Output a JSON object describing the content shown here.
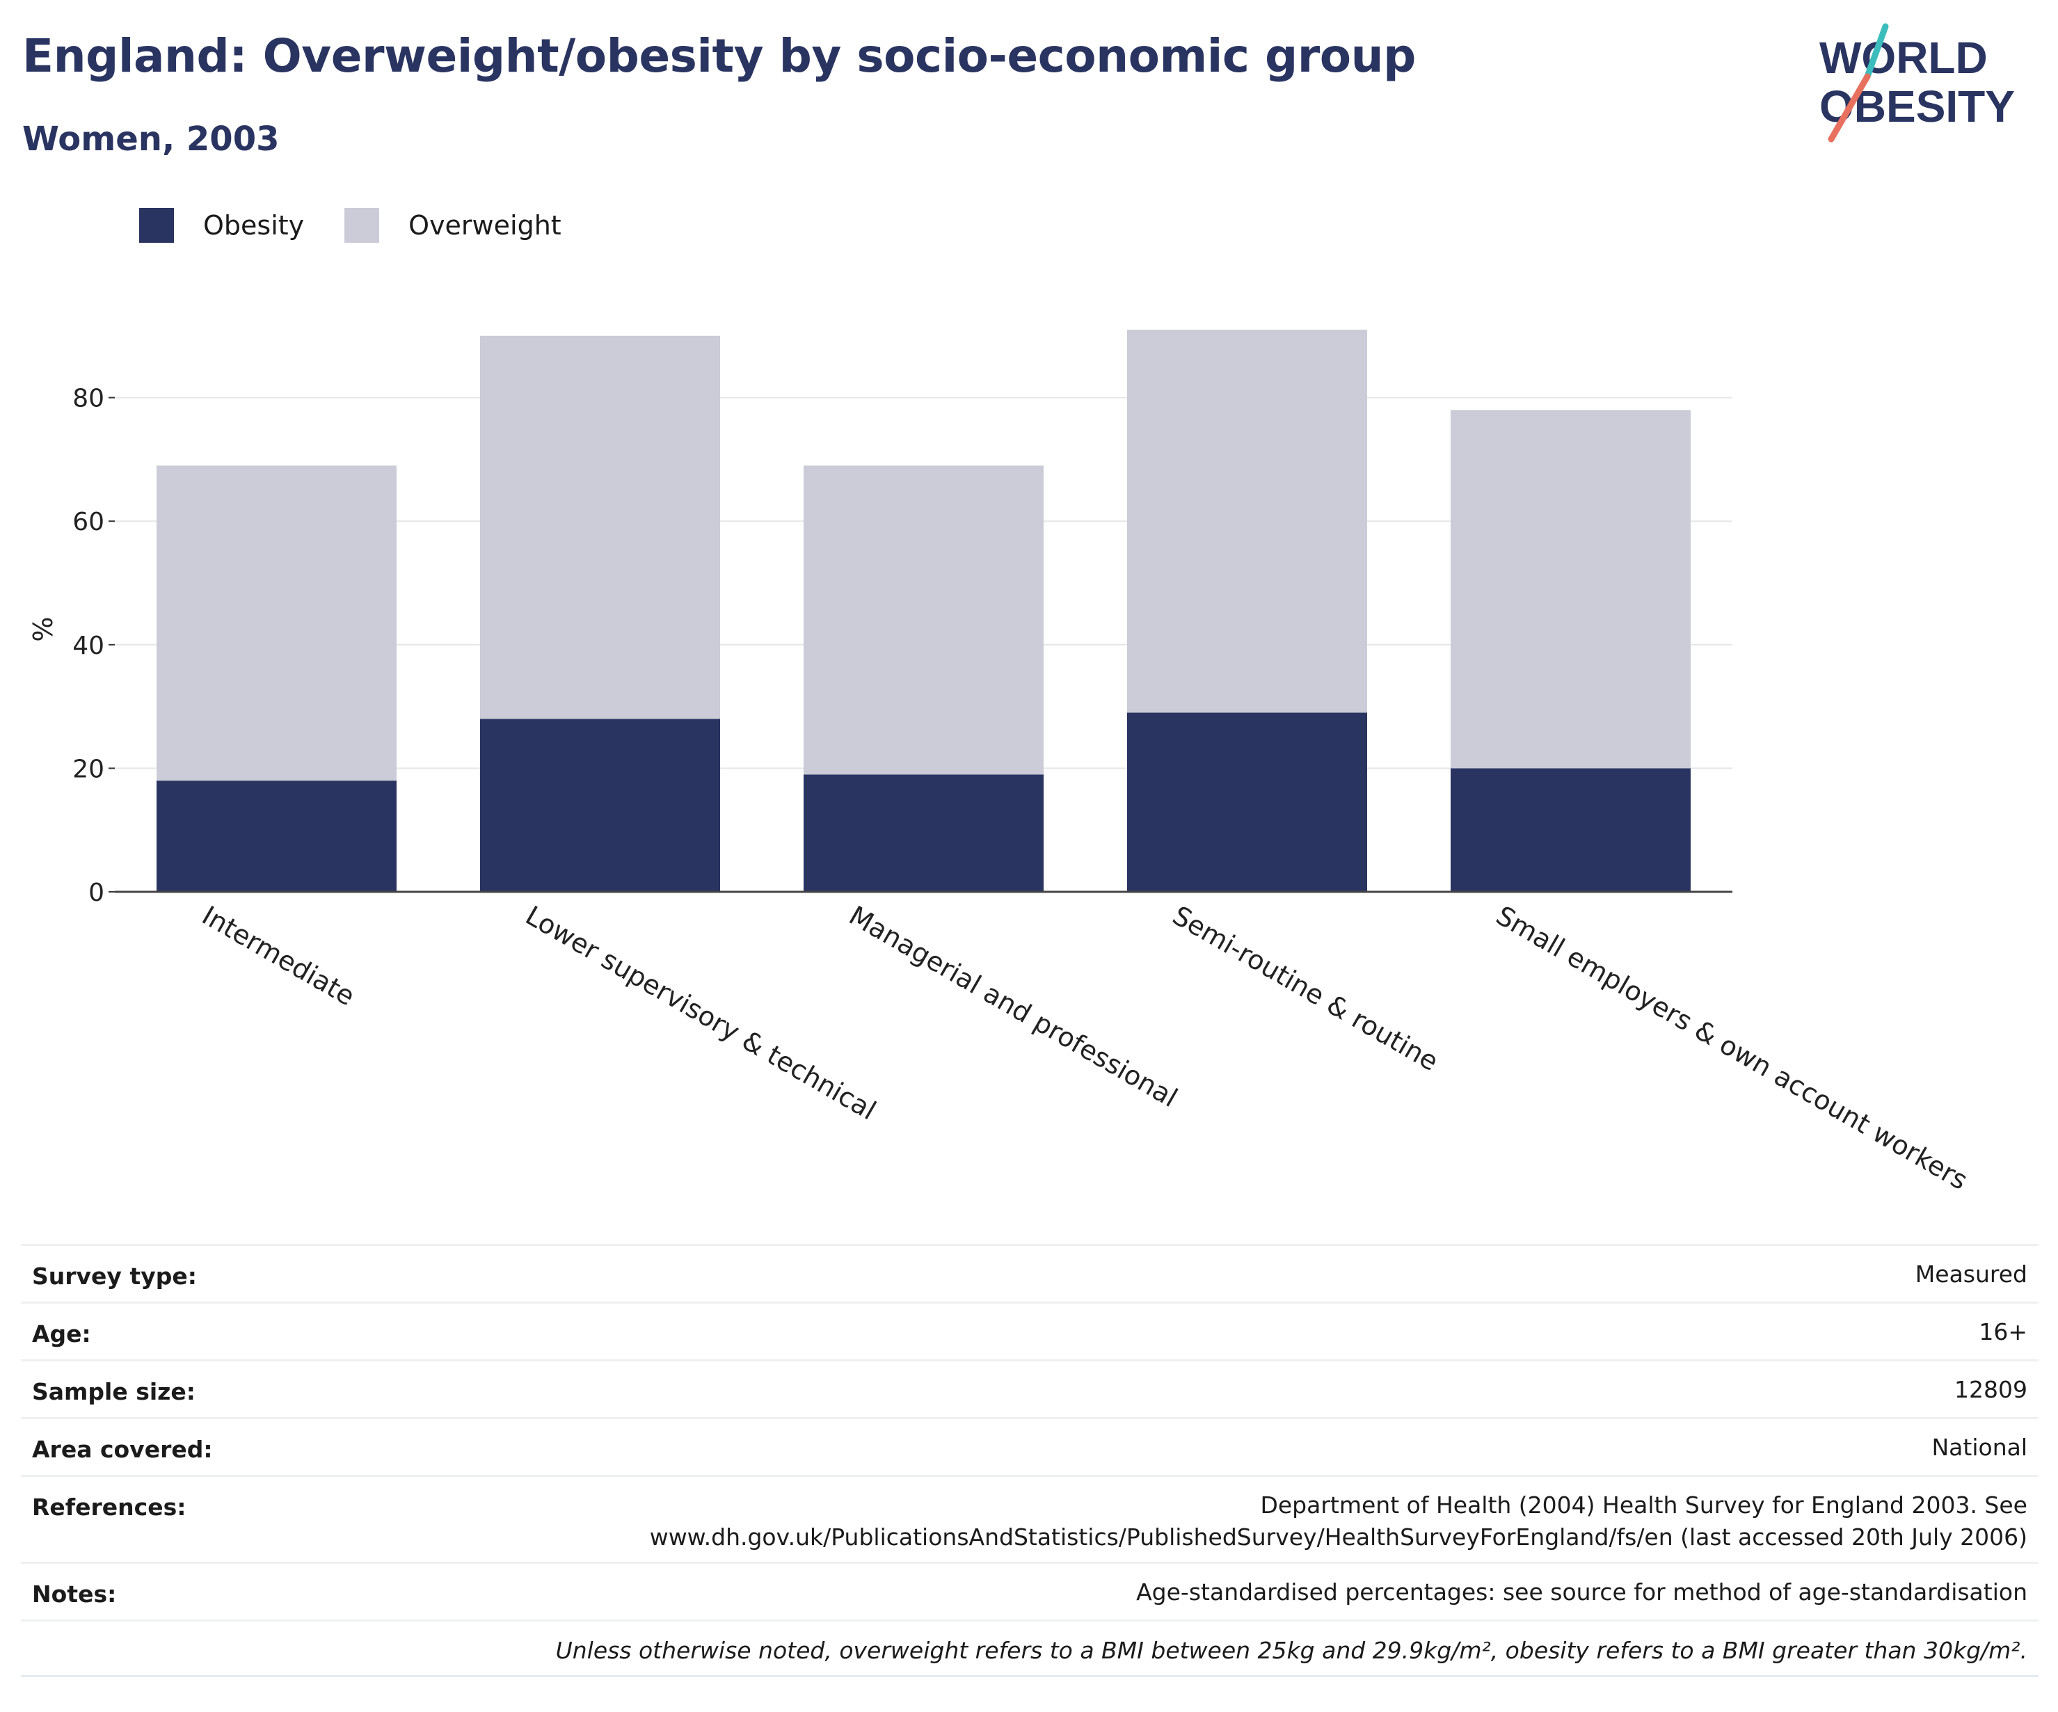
{
  "header": {
    "title": "England: Overweight/obesity by socio-economic group",
    "subtitle": "Women, 2003"
  },
  "logo": {
    "line1": "WORLD",
    "line2": "OBESITY"
  },
  "colors": {
    "obesity": "#2a3461",
    "overweight": "#cbccd8",
    "text": "#2a3461",
    "logo_teal": "#3cbdbd",
    "logo_coral": "#e8705e"
  },
  "chart_data": {
    "type": "bar",
    "stacked": true,
    "categories": [
      "Intermediate",
      "Lower supervisory & technical",
      "Managerial and professional",
      "Semi-routine & routine",
      "Small employers & own account workers"
    ],
    "series": [
      {
        "name": "Obesity",
        "values": [
          18,
          28,
          19,
          29,
          20
        ]
      },
      {
        "name": "Overweight",
        "values": [
          51,
          62,
          50,
          62,
          58
        ]
      }
    ],
    "ylabel": "%",
    "xlabel": "",
    "ylim": [
      0,
      95
    ],
    "yticks": [
      0,
      20,
      40,
      60,
      80
    ],
    "grid": true,
    "legend": "top-left"
  },
  "info": {
    "rows": [
      {
        "key": "Survey type:",
        "value": [
          "Measured"
        ]
      },
      {
        "key": "Age:",
        "value": [
          "16+"
        ]
      },
      {
        "key": "Sample size:",
        "value": [
          "12809"
        ]
      },
      {
        "key": "Area covered:",
        "value": [
          "National"
        ]
      },
      {
        "key": "References:",
        "value": [
          "Department of Health (2004) Health Survey for England 2003. See",
          "www.dh.gov.uk/PublicationsAndStatistics/PublishedSurvey/HealthSurveyForEngland/fs/en (last accessed 20th July 2006)"
        ]
      },
      {
        "key": "Notes:",
        "value": [
          "Age-standardised percentages: see source for method of age-standardisation"
        ]
      }
    ],
    "footnote": "Unless otherwise noted, overweight refers to a BMI between 25kg and 29.9kg/m², obesity refers to a BMI greater than 30kg/m²."
  }
}
